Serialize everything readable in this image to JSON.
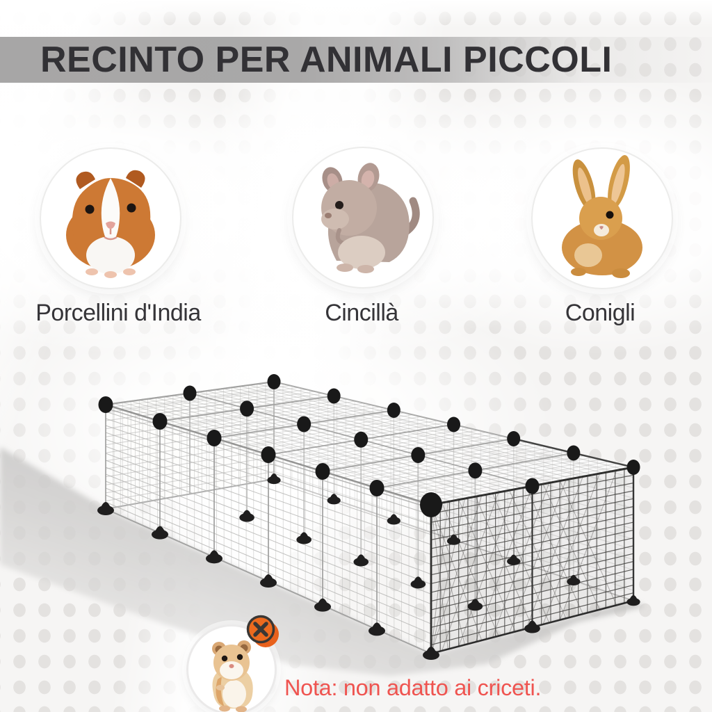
{
  "title": "RECINTO PER ANIMALI PICCOLI",
  "animals": [
    {
      "label": "Porcellini d'India",
      "icon": "guinea-pig-photo"
    },
    {
      "label": "Cincillà",
      "icon": "chinchilla-photo"
    },
    {
      "label": "Conigli",
      "icon": "rabbit-photo"
    }
  ],
  "note": {
    "text": "Nota: non adatto ai criceti.",
    "icon": "hamster-photo",
    "badge_icon": "prohibited-x"
  },
  "colors": {
    "title_text": "#323135",
    "band_gray": "#a9a8a8",
    "note_text": "#ef5450",
    "badge_orange": "#e8611c",
    "badge_dark": "#3a3734"
  }
}
